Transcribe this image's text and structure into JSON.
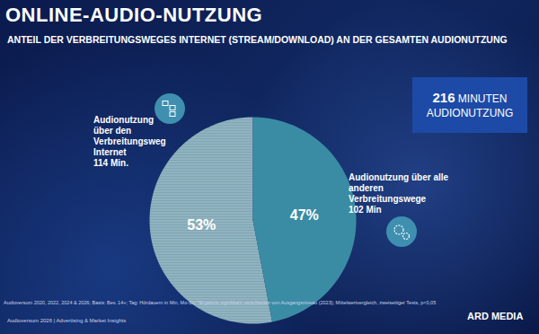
{
  "chart_data": {
    "type": "pie",
    "title": "ONLINE-AUDIO-NUTZUNG",
    "subtitle": "ANTEIL DER VERBREITUNGSWEGES INTERNET (STREAM/DOWNLOAD) AN DER GESAMTEN AUDIONUTZUNG",
    "categories": [
      "Audionutzung\nüber den\nVerbreitungsweg\nInternet\n114 Min.",
      "Audionutzung über alle\nanderen\nVerbreitungswege\n102 Min"
    ],
    "values": [
      53,
      47
    ],
    "value_labels": [
      "53%",
      "47%"
    ],
    "colors": [
      "#7fa6b4",
      "#3a8ca4"
    ],
    "data_labels": true,
    "annotations": [
      {
        "text": "216 MINUTEN\nAUDIONUTZUNG"
      }
    ],
    "notes": [
      "Audioversum 2020, 2022, 2024 & 2026; Basis: Bev. 14+; Tag: Hördauern in Min, Mo-So; *Ergebnis signifikant verschieden von Ausgangsniveau (2023); Mittelwertvergleich, zweiseitiger Tests, p<0,05"
    ],
    "footer": "Audioversum 2026 | Advertising & Market Insights",
    "logo": "ARD MEDIA"
  }
}
